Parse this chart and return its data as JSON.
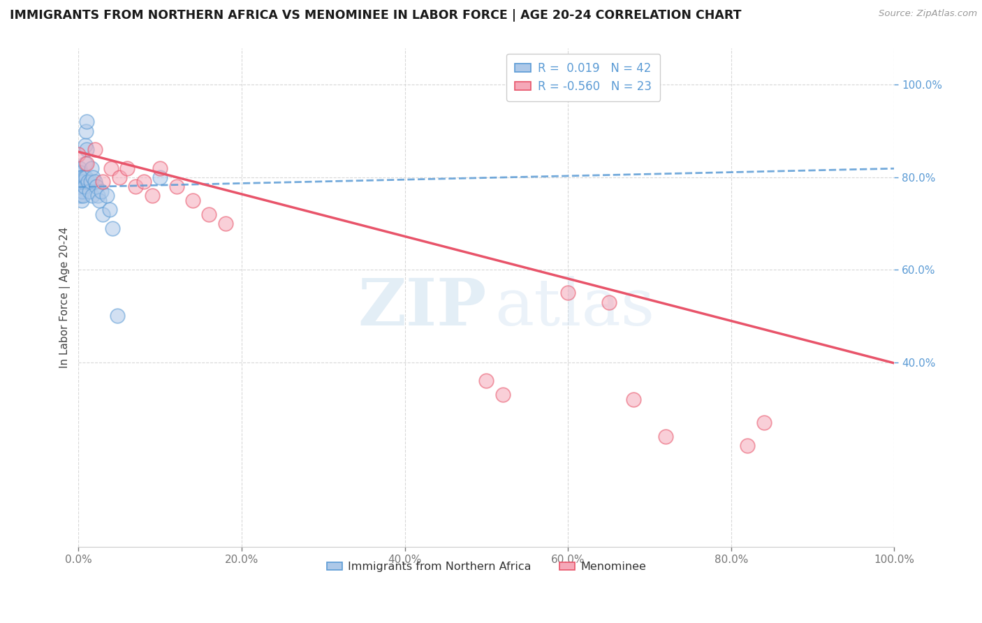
{
  "title": "IMMIGRANTS FROM NORTHERN AFRICA VS MENOMINEE IN LABOR FORCE | AGE 20-24 CORRELATION CHART",
  "source": "Source: ZipAtlas.com",
  "ylabel": "In Labor Force | Age 20-24",
  "xlim": [
    0.0,
    1.0
  ],
  "ylim": [
    0.0,
    1.08
  ],
  "xtick_vals": [
    0.0,
    0.2,
    0.4,
    0.6,
    0.8,
    1.0
  ],
  "ytick_vals": [
    0.4,
    0.6,
    0.8,
    1.0
  ],
  "blue_color": "#adc8e8",
  "pink_color": "#f5a8b8",
  "blue_line_color": "#5b9bd5",
  "pink_line_color": "#e8546a",
  "legend_blue_label": "Immigrants from Northern Africa",
  "legend_pink_label": "Menominee",
  "r_blue": 0.019,
  "n_blue": 42,
  "r_pink": -0.56,
  "n_pink": 23,
  "blue_scatter_x": [
    0.0,
    0.0,
    0.001,
    0.001,
    0.001,
    0.002,
    0.002,
    0.002,
    0.003,
    0.003,
    0.003,
    0.004,
    0.004,
    0.005,
    0.005,
    0.006,
    0.006,
    0.007,
    0.007,
    0.008,
    0.008,
    0.009,
    0.009,
    0.01,
    0.01,
    0.012,
    0.013,
    0.015,
    0.016,
    0.017,
    0.018,
    0.02,
    0.022,
    0.024,
    0.025,
    0.028,
    0.03,
    0.035,
    0.038,
    0.042,
    0.048,
    0.1
  ],
  "blue_scatter_y": [
    0.79,
    0.78,
    0.82,
    0.8,
    0.76,
    0.79,
    0.81,
    0.77,
    0.8,
    0.78,
    0.76,
    0.79,
    0.75,
    0.8,
    0.77,
    0.79,
    0.76,
    0.8,
    0.78,
    0.83,
    0.87,
    0.9,
    0.8,
    0.92,
    0.86,
    0.79,
    0.77,
    0.79,
    0.82,
    0.76,
    0.8,
    0.79,
    0.78,
    0.76,
    0.75,
    0.77,
    0.72,
    0.76,
    0.73,
    0.69,
    0.5,
    0.8
  ],
  "pink_scatter_x": [
    0.0,
    0.01,
    0.02,
    0.03,
    0.04,
    0.05,
    0.06,
    0.07,
    0.08,
    0.09,
    0.1,
    0.12,
    0.14,
    0.16,
    0.18,
    0.5,
    0.52,
    0.6,
    0.65,
    0.68,
    0.72,
    0.82,
    0.84
  ],
  "pink_scatter_y": [
    0.85,
    0.83,
    0.86,
    0.79,
    0.82,
    0.8,
    0.82,
    0.78,
    0.79,
    0.76,
    0.82,
    0.78,
    0.75,
    0.72,
    0.7,
    0.36,
    0.33,
    0.55,
    0.53,
    0.32,
    0.24,
    0.22,
    0.27
  ],
  "blue_trendline_x": [
    0.0,
    1.0
  ],
  "blue_trendline_y": [
    0.779,
    0.819
  ],
  "pink_trendline_x": [
    0.0,
    1.0
  ],
  "pink_trendline_y": [
    0.855,
    0.398
  ],
  "watermark_zip": "ZIP",
  "watermark_atlas": "atlas",
  "background_color": "#ffffff",
  "grid_color": "#d8d8d8"
}
